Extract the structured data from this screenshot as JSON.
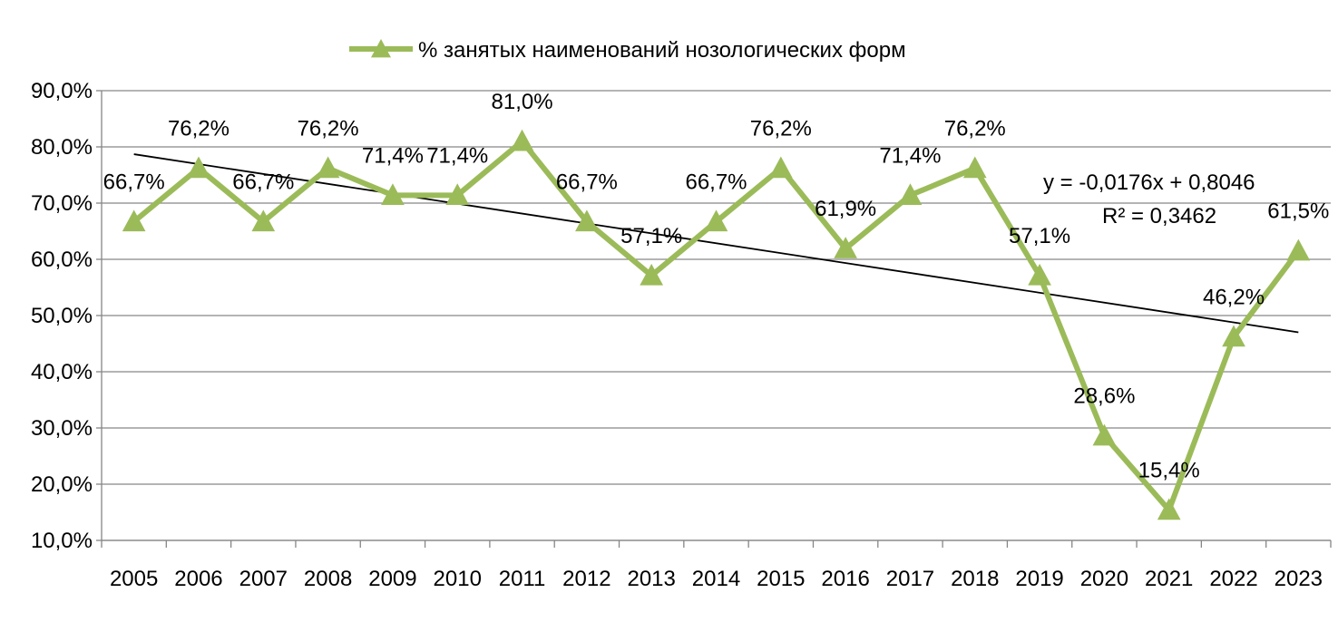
{
  "chart_data": {
    "type": "line",
    "legend": {
      "position": "top"
    },
    "x": [
      "2005",
      "2006",
      "2007",
      "2008",
      "2009",
      "2010",
      "2011",
      "2012",
      "2013",
      "2014",
      "2015",
      "2016",
      "2017",
      "2018",
      "2019",
      "2020",
      "2021",
      "2022",
      "2023"
    ],
    "series": [
      {
        "name": "% занятых наименований нозологических форм",
        "values": [
          0.667,
          0.762,
          0.667,
          0.762,
          0.714,
          0.714,
          0.81,
          0.667,
          0.571,
          0.667,
          0.762,
          0.619,
          0.714,
          0.762,
          0.571,
          0.286,
          0.154,
          0.462,
          0.615
        ],
        "labels": [
          "66,7%",
          "76,2%",
          "66,7%",
          "76,2%",
          "71,4%",
          "71,4%",
          "81,0%",
          "66,7%",
          "57,1%",
          "66,7%",
          "76,2%",
          "61,9%",
          "71,4%",
          "76,2%",
          "57,1%",
          "28,6%",
          "15,4%",
          "46,2%",
          "61,5%"
        ],
        "color": "#9BBB59",
        "marker": "triangle"
      }
    ],
    "trendline": {
      "type": "linear",
      "slope": -0.0176,
      "intercept": 0.8046,
      "equation": "y = -0,0176x + 0,8046",
      "r_squared": "R² = 0,3462",
      "color": "#000000"
    },
    "ylim": [
      0.1,
      0.9
    ],
    "yticks": [
      0.1,
      0.2,
      0.3,
      0.4,
      0.5,
      0.6,
      0.7,
      0.8,
      0.9
    ],
    "ytick_labels": [
      "10,0%",
      "20,0%",
      "30,0%",
      "40,0%",
      "50,0%",
      "60,0%",
      "70,0%",
      "80,0%",
      "90,0%"
    ],
    "grid": true
  }
}
